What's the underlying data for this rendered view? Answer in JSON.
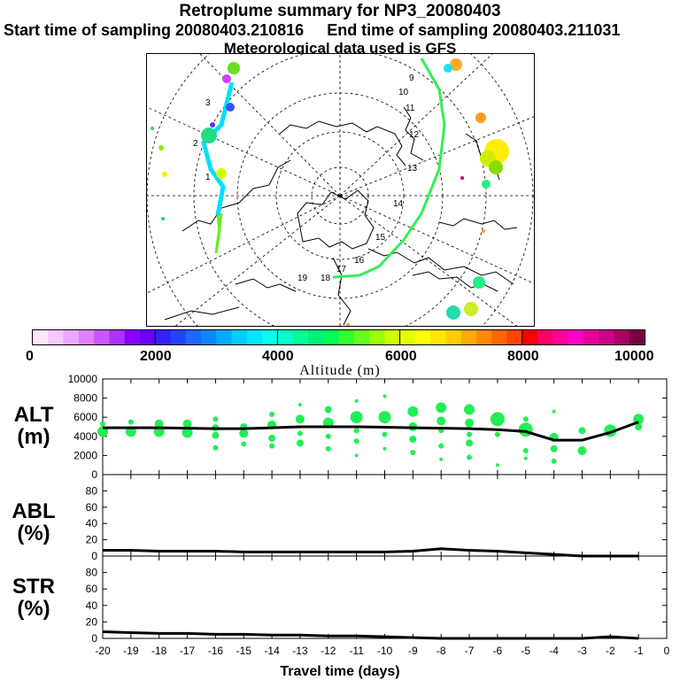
{
  "header": {
    "title": "Retroplume summary for NP3_20080403",
    "start_label": "Start time of sampling 20080403.210816",
    "end_label": "End time of sampling 20080403.211031",
    "met_label": "Meteorological data used is GFS"
  },
  "map": {
    "track_labels": [
      "1",
      "2",
      "3",
      "4",
      "9",
      "10",
      "11",
      "12",
      "13",
      "14",
      "15",
      "16",
      "17",
      "18",
      "19"
    ],
    "track_color_left": "#00e0ff",
    "track_color_right": "#33ee55"
  },
  "colorbar": {
    "ticks": [
      "0",
      "2000",
      "4000",
      "6000",
      "8000",
      "10000"
    ],
    "label": "Altitude (m)",
    "colors": [
      "#ffe6ff",
      "#f5c8ff",
      "#eaa8ff",
      "#e080ff",
      "#cc55ff",
      "#b030ff",
      "#8a00ff",
      "#6a00ff",
      "#3322ff",
      "#2244ff",
      "#1f66ff",
      "#0a88ff",
      "#00aaff",
      "#00ccff",
      "#00e6ff",
      "#00ffee",
      "#00ffcc",
      "#00ff99",
      "#00f07a",
      "#00ff55",
      "#33ff33",
      "#66ff22",
      "#99ff00",
      "#ccff00",
      "#e6ff00",
      "#ffff00",
      "#ffe600",
      "#ffcc00",
      "#ffaa00",
      "#ff8800",
      "#ff6600",
      "#ff4400",
      "#ff0000",
      "#ff0066",
      "#ff0099",
      "#ff00cc",
      "#e60099",
      "#cc0088",
      "#aa0066",
      "#7a0044"
    ]
  },
  "chart_data": [
    {
      "type": "line",
      "panel": "ALT",
      "ylabel": "ALT (m)",
      "ylim": [
        0,
        10000
      ],
      "yticks": [
        "0",
        "2000",
        "4000",
        "6000",
        "8000",
        "10000"
      ],
      "x": [
        -20,
        -19,
        -18,
        -17,
        -16,
        -15,
        -14,
        -13,
        -12,
        -11,
        -10,
        -9,
        -8,
        -7,
        -6,
        -5,
        -4,
        -3,
        -2,
        -1
      ],
      "series": [
        {
          "name": "mean altitude",
          "values": [
            4900,
            4900,
            4900,
            4850,
            4800,
            4800,
            4900,
            5000,
            5000,
            5000,
            4950,
            4900,
            4850,
            4800,
            4700,
            4500,
            3600,
            3600,
            4400,
            5500
          ]
        }
      ],
      "points": [
        {
          "x": -20,
          "y": 4500,
          "s": 6
        },
        {
          "x": -20,
          "y": 5300,
          "s": 3
        },
        {
          "x": -19,
          "y": 4500,
          "s": 6
        },
        {
          "x": -19,
          "y": 5500,
          "s": 3
        },
        {
          "x": -18,
          "y": 4500,
          "s": 6
        },
        {
          "x": -18,
          "y": 5300,
          "s": 5
        },
        {
          "x": -17,
          "y": 4400,
          "s": 6
        },
        {
          "x": -17,
          "y": 5300,
          "s": 5
        },
        {
          "x": -16,
          "y": 5800,
          "s": 3
        },
        {
          "x": -16,
          "y": 4900,
          "s": 4
        },
        {
          "x": -16,
          "y": 4100,
          "s": 4
        },
        {
          "x": -16,
          "y": 2800,
          "s": 3
        },
        {
          "x": -15,
          "y": 5000,
          "s": 4
        },
        {
          "x": -15,
          "y": 4300,
          "s": 5
        },
        {
          "x": -15,
          "y": 3200,
          "s": 3
        },
        {
          "x": -14,
          "y": 6300,
          "s": 3
        },
        {
          "x": -14,
          "y": 5200,
          "s": 5
        },
        {
          "x": -14,
          "y": 3800,
          "s": 4
        },
        {
          "x": -14,
          "y": 3000,
          "s": 3
        },
        {
          "x": -13,
          "y": 7300,
          "s": 2
        },
        {
          "x": -13,
          "y": 5800,
          "s": 5
        },
        {
          "x": -13,
          "y": 4300,
          "s": 3
        },
        {
          "x": -13,
          "y": 3300,
          "s": 4
        },
        {
          "x": -12,
          "y": 6800,
          "s": 4
        },
        {
          "x": -12,
          "y": 5400,
          "s": 6
        },
        {
          "x": -12,
          "y": 4000,
          "s": 3
        },
        {
          "x": -12,
          "y": 2700,
          "s": 3
        },
        {
          "x": -11,
          "y": 7700,
          "s": 2
        },
        {
          "x": -11,
          "y": 6000,
          "s": 7
        },
        {
          "x": -11,
          "y": 4600,
          "s": 3
        },
        {
          "x": -11,
          "y": 3500,
          "s": 3
        },
        {
          "x": -11,
          "y": 2000,
          "s": 2
        },
        {
          "x": -10,
          "y": 8200,
          "s": 2
        },
        {
          "x": -10,
          "y": 6000,
          "s": 7
        },
        {
          "x": -10,
          "y": 4200,
          "s": 3
        },
        {
          "x": -10,
          "y": 2700,
          "s": 2
        },
        {
          "x": -9,
          "y": 6600,
          "s": 6
        },
        {
          "x": -9,
          "y": 5000,
          "s": 5
        },
        {
          "x": -9,
          "y": 3700,
          "s": 4
        },
        {
          "x": -9,
          "y": 2300,
          "s": 3
        },
        {
          "x": -8,
          "y": 7000,
          "s": 6
        },
        {
          "x": -8,
          "y": 5600,
          "s": 5
        },
        {
          "x": -8,
          "y": 4600,
          "s": 3
        },
        {
          "x": -8,
          "y": 3000,
          "s": 3
        },
        {
          "x": -8,
          "y": 1600,
          "s": 2
        },
        {
          "x": -7,
          "y": 6800,
          "s": 6
        },
        {
          "x": -7,
          "y": 5400,
          "s": 5
        },
        {
          "x": -7,
          "y": 4200,
          "s": 3
        },
        {
          "x": -7,
          "y": 3300,
          "s": 4
        },
        {
          "x": -7,
          "y": 1800,
          "s": 3
        },
        {
          "x": -6,
          "y": 5800,
          "s": 8
        },
        {
          "x": -6,
          "y": 4200,
          "s": 3
        },
        {
          "x": -6,
          "y": 1000,
          "s": 2
        },
        {
          "x": -5,
          "y": 5800,
          "s": 3
        },
        {
          "x": -5,
          "y": 4700,
          "s": 8
        },
        {
          "x": -5,
          "y": 2500,
          "s": 3
        },
        {
          "x": -5,
          "y": 1700,
          "s": 2
        },
        {
          "x": -4,
          "y": 6600,
          "s": 2
        },
        {
          "x": -4,
          "y": 3900,
          "s": 5
        },
        {
          "x": -4,
          "y": 2700,
          "s": 4
        },
        {
          "x": -4,
          "y": 1400,
          "s": 3
        },
        {
          "x": -3,
          "y": 4600,
          "s": 4
        },
        {
          "x": -3,
          "y": 2500,
          "s": 5
        },
        {
          "x": -2,
          "y": 4600,
          "s": 7
        },
        {
          "x": -2,
          "y": 4200,
          "s": 3
        },
        {
          "x": -1,
          "y": 5800,
          "s": 6
        },
        {
          "x": -1,
          "y": 5000,
          "s": 4
        }
      ]
    },
    {
      "type": "line",
      "panel": "ABL",
      "ylabel": "ABL (%)",
      "ylim": [
        0,
        100
      ],
      "yticks": [
        "0",
        "20",
        "40",
        "60",
        "80"
      ],
      "x": [
        -20,
        -19,
        -18,
        -17,
        -16,
        -15,
        -14,
        -13,
        -12,
        -11,
        -10,
        -9,
        -8,
        -7,
        -6,
        -5,
        -4,
        -3,
        -2,
        -1
      ],
      "series": [
        {
          "name": "ABL fraction",
          "values": [
            7,
            7,
            6,
            6,
            6,
            5,
            5,
            5,
            5,
            5,
            5,
            6,
            9,
            7,
            6,
            4,
            2,
            0,
            0,
            0
          ]
        }
      ]
    },
    {
      "type": "line",
      "panel": "STR",
      "ylabel": "STR (%)",
      "ylim": [
        0,
        100
      ],
      "yticks": [
        "0",
        "20",
        "40",
        "60",
        "80"
      ],
      "xlabel": "Travel time (days)",
      "xticks": [
        "-20",
        "-19",
        "-18",
        "-17",
        "-16",
        "-15",
        "-14",
        "-13",
        "-12",
        "-11",
        "-10",
        "-9",
        "-8",
        "-7",
        "-6",
        "-5",
        "-4",
        "-3",
        "-2",
        "-1",
        "0"
      ],
      "x": [
        -20,
        -19,
        -18,
        -17,
        -16,
        -15,
        -14,
        -13,
        -12,
        -11,
        -10,
        -9,
        -8,
        -7,
        -6,
        -5,
        -4,
        -3,
        -2,
        -1
      ],
      "series": [
        {
          "name": "stratospheric fraction",
          "values": [
            8,
            7,
            6,
            6,
            5,
            5,
            4,
            4,
            3,
            3,
            2,
            1,
            0,
            0,
            0,
            0,
            0,
            0,
            2,
            0
          ]
        }
      ]
    }
  ]
}
